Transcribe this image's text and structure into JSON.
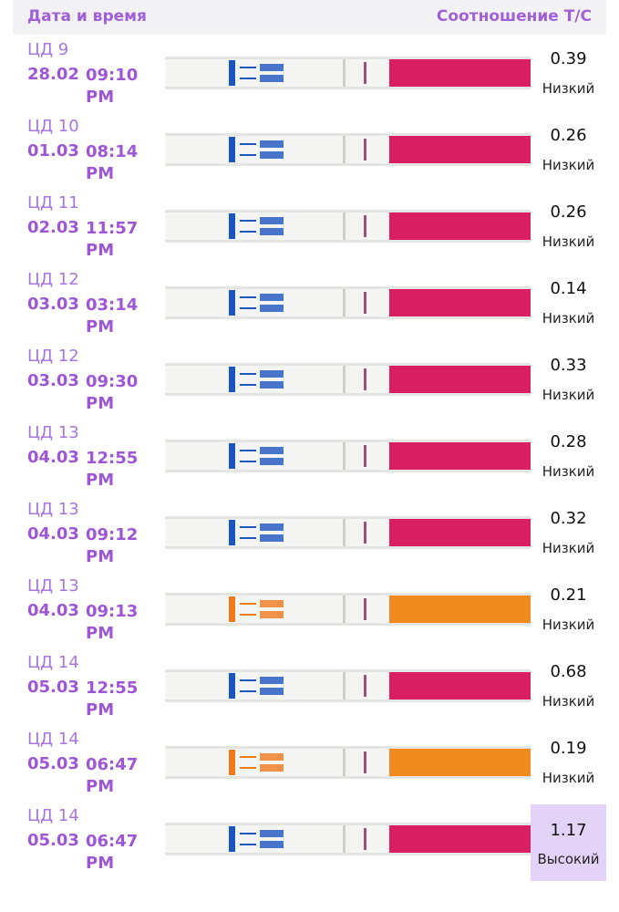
{
  "header": {
    "left": "Дата и время",
    "right": "Соотношение Т/С"
  },
  "rows": [
    {
      "day": "ЦД 9",
      "date": "28.02",
      "time": "09:10 PM",
      "ratio": "0.39",
      "level": "Низкий"
    },
    {
      "day": "ЦД 10",
      "date": "01.03",
      "time": "08:14 PM",
      "ratio": "0.26",
      "level": "Низкий"
    },
    {
      "day": "ЦД 11",
      "date": "02.03",
      "time": "11:57 PM",
      "ratio": "0.26",
      "level": "Низкий"
    },
    {
      "day": "ЦД 12",
      "date": "03.03",
      "time": "03:14 PM",
      "ratio": "0.14",
      "level": "Низкий"
    },
    {
      "day": "ЦД 12",
      "date": "03.03",
      "time": "09:30 PM",
      "ratio": "0.33",
      "level": "Низкий"
    },
    {
      "day": "ЦД 13",
      "date": "04.03",
      "time": "12:55 PM",
      "ratio": "0.28",
      "level": "Низкий"
    },
    {
      "day": "ЦД 13",
      "date": "04.03",
      "time": "09:12 PM",
      "ratio": "0.32",
      "level": "Низкий"
    },
    {
      "day": "ЦД 13",
      "date": "04.03",
      "time": "09:13 PM",
      "ratio": "0.21",
      "level": "Низкий"
    },
    {
      "day": "ЦД 14",
      "date": "05.03",
      "time": "12:55 PM",
      "ratio": "0.68",
      "level": "Низкий"
    },
    {
      "day": "ЦД 14",
      "date": "05.03",
      "time": "06:47 PM",
      "ratio": "0.19",
      "level": "Низкий"
    },
    {
      "day": "ЦД 14",
      "date": "05.03",
      "time": "06:47 PM",
      "ratio": "1.17",
      "level": "Высокий"
    }
  ]
}
